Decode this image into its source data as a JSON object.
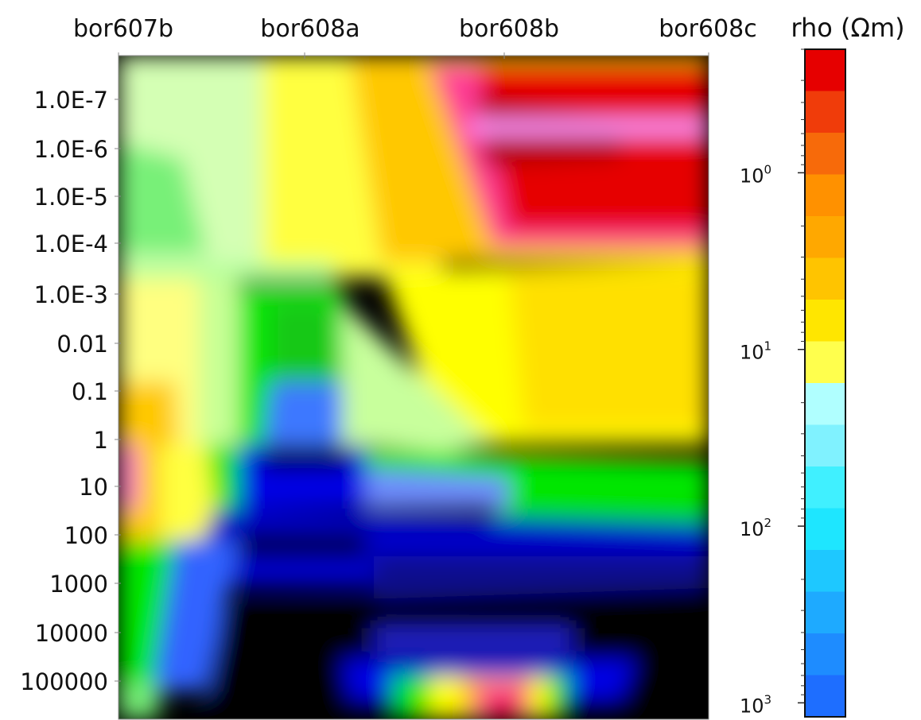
{
  "chart_data": {
    "type": "heatmap",
    "title": "",
    "xlabel": "",
    "ylabel": "",
    "x_categories": [
      "bor607b",
      "bor608a",
      "bor608b",
      "bor608c"
    ],
    "y_tick_labels": [
      "1.0E-7",
      "1.0E-6",
      "1.0E-5",
      "1.0E-4",
      "1.0E-3",
      "0.01",
      "0.1",
      "1",
      "10",
      "100",
      "1000",
      "10000",
      "100000"
    ],
    "y_scale": "log",
    "colorbar": {
      "label": "rho (Ωm)",
      "scale": "log",
      "range": [
        0.2,
        1200
      ],
      "reversed": true,
      "ticks": [
        {
          "base": "10",
          "exp": "0",
          "value": 1
        },
        {
          "base": "10",
          "exp": "1",
          "value": 10
        },
        {
          "base": "10",
          "exp": "2",
          "value": 100
        },
        {
          "base": "10",
          "exp": "3",
          "value": 1000
        }
      ],
      "colors": [
        "#e60000",
        "#f03c0a",
        "#f76a0a",
        "#ff9100",
        "#ffa800",
        "#ffc400",
        "#ffe600",
        "#ffff4d",
        "#b0ffff",
        "#80f2ff",
        "#40f0ff",
        "#1ee6ff",
        "#1ec8ff",
        "#1eaaff",
        "#1e8cff",
        "#1e6eff"
      ],
      "class_bounds": [
        0.3,
        0.45,
        0.7,
        1.1,
        1.7,
        2.6,
        4,
        6,
        9,
        14,
        20,
        30,
        50,
        75,
        115,
        175,
        270,
        410,
        620,
        950
      ]
    }
  }
}
